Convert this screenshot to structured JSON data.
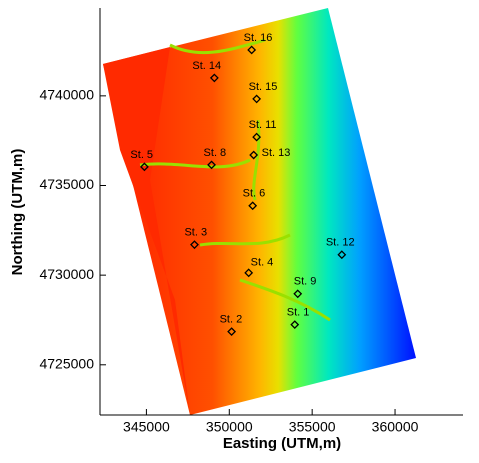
{
  "chart_data": {
    "type": "scatter",
    "xlabel": "Easting (UTM,m)",
    "ylabel": "Northing (UTM,m)",
    "xlim": [
      342200,
      364100
    ],
    "ylim": [
      4722200,
      4744900
    ],
    "xticks": [
      345000,
      350000,
      355000,
      360000
    ],
    "yticks": [
      4725000,
      4730000,
      4735000,
      4740000
    ],
    "series": [
      {
        "color": "#000000",
        "labels": [
          "St. 16",
          "St. 14",
          "St. 15",
          "St. 11",
          "St. 13",
          "St. 8",
          "St. 5",
          "St. 6",
          "St. 3",
          "St. 12",
          "St. 4",
          "St. 9",
          "St. 2",
          "St. 1"
        ],
        "x": [
          351350,
          349100,
          351650,
          351650,
          351470,
          348930,
          344880,
          351410,
          347900,
          356790,
          351170,
          354130,
          350140,
          353950
        ],
        "values": [
          4742560,
          4741000,
          4739830,
          4737700,
          4736700,
          4736150,
          4736040,
          4733870,
          4731700,
          4731140,
          4730130,
          4728960,
          4726850,
          4727240
        ]
      }
    ]
  }
}
